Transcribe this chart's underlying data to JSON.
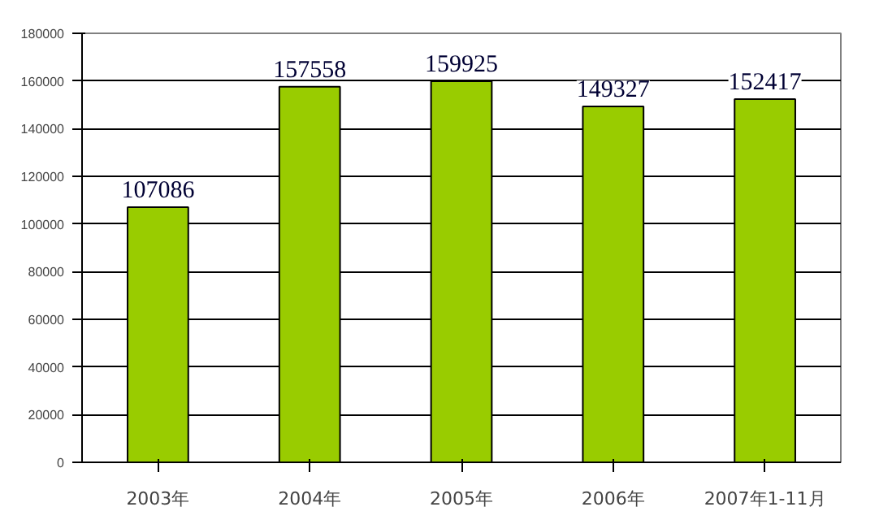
{
  "chart_data": {
    "type": "bar",
    "categories": [
      "2003年",
      "2004年",
      "2005年",
      "2006年",
      "2007年1-11月"
    ],
    "values": [
      107086,
      157558,
      159925,
      149327,
      152417
    ],
    "color": "#99cc00",
    "ylim": [
      0,
      180000
    ],
    "yticks": [
      0,
      20000,
      40000,
      60000,
      80000,
      100000,
      120000,
      140000,
      160000,
      180000
    ],
    "grid": "y",
    "data_labels": true
  }
}
